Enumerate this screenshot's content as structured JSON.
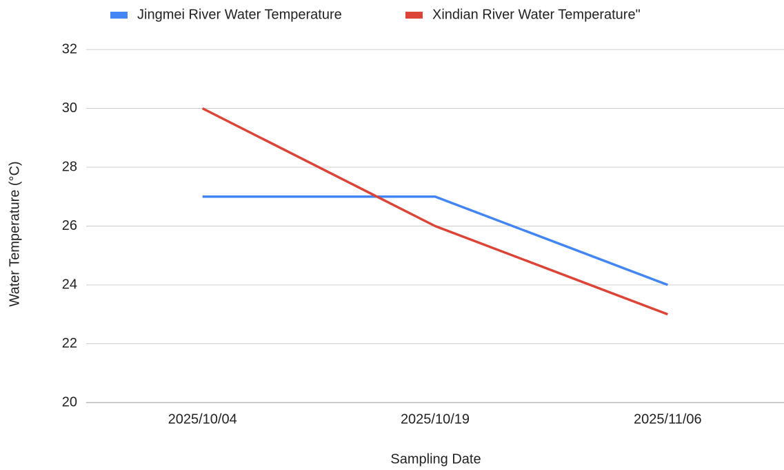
{
  "chart_data": {
    "type": "line",
    "x_label": "Sampling Date",
    "y_label": "Water Temperature (°C)",
    "categories": [
      "2025/10/04",
      "2025/10/19",
      "2025/11/06"
    ],
    "series": [
      {
        "name": "Jingmei River Water Temperature",
        "color": "#4285f4",
        "values": [
          27,
          27,
          24
        ]
      },
      {
        "name": "Xindian River Water Temperature\"",
        "color": "#db4437",
        "values": [
          30,
          26,
          23
        ]
      }
    ],
    "ylim": [
      20,
      32
    ],
    "yticks": [
      20,
      22,
      24,
      26,
      28,
      30,
      32
    ],
    "grid": true,
    "legend": "top"
  }
}
